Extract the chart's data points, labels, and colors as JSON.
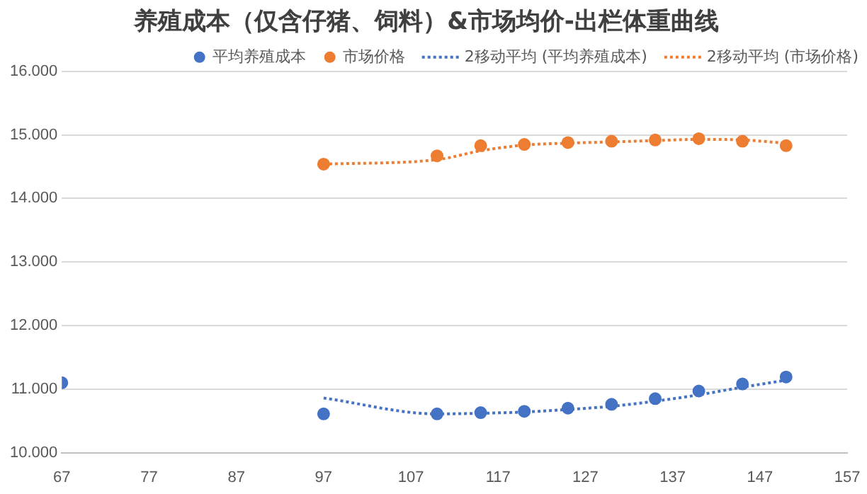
{
  "chart_data": {
    "type": "scatter",
    "title": "养殖成本（仅含仔猪、饲料）&市场均价-出栏体重曲线",
    "marker": "circle",
    "grid": "y",
    "legend": "top right",
    "xlim": [
      67,
      157
    ],
    "xticks": [
      67,
      77,
      87,
      97,
      107,
      117,
      127,
      137,
      147,
      157
    ],
    "ylim": [
      10,
      16
    ],
    "yticks": [
      {
        "value": 10,
        "label": "10.000"
      },
      {
        "value": 11,
        "label": "11.000"
      },
      {
        "value": 12,
        "label": "12.000"
      },
      {
        "value": 13,
        "label": "13.000"
      },
      {
        "value": 14,
        "label": "14.000"
      },
      {
        "value": 15,
        "label": "15.000"
      },
      {
        "value": 16,
        "label": "16.000"
      }
    ],
    "series": [
      {
        "name": "平均养殖成本",
        "color": "#4472c4",
        "x": [
          67,
          97,
          110,
          115,
          120,
          125,
          130,
          135,
          140,
          145,
          150
        ],
        "values": [
          11.1,
          10.61,
          10.61,
          10.63,
          10.65,
          10.7,
          10.76,
          10.85,
          10.97,
          11.08,
          11.19
        ]
      },
      {
        "name": "市场价格",
        "color": "#ed7d31",
        "x": [
          97,
          110,
          115,
          120,
          125,
          130,
          135,
          140,
          145,
          150
        ],
        "values": [
          14.54,
          14.67,
          14.83,
          14.85,
          14.88,
          14.9,
          14.92,
          14.94,
          14.9,
          14.83
        ]
      },
      {
        "name": "2移动平均 (平均养殖成本)",
        "type": "line",
        "marker": "none",
        "line_style": "dotted",
        "color": "#4472c4",
        "x": [
          97,
          110,
          115,
          120,
          125,
          130,
          135,
          140,
          145,
          150
        ],
        "values": [
          10.86,
          10.61,
          10.62,
          10.64,
          10.68,
          10.73,
          10.81,
          10.91,
          11.03,
          11.14
        ]
      },
      {
        "name": "2移动平均 (市场价格)",
        "type": "line",
        "marker": "none",
        "line_style": "dotted",
        "color": "#ed7d31",
        "x": [
          97,
          110,
          115,
          120,
          125,
          130,
          135,
          140,
          145,
          150
        ],
        "values": [
          14.54,
          14.61,
          14.75,
          14.84,
          14.87,
          14.89,
          14.91,
          14.93,
          14.92,
          14.87
        ]
      }
    ]
  }
}
